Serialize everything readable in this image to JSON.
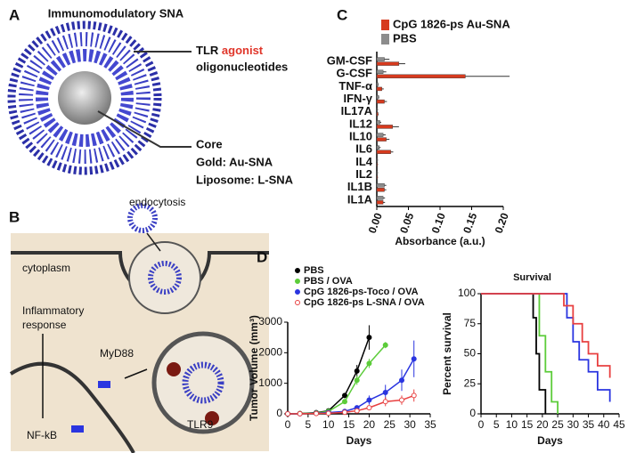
{
  "panel_labels": [
    "A",
    "B",
    "C",
    "D"
  ],
  "diagram_a": {
    "title": "Immunomodulatory SNA",
    "tlr": "TLR",
    "agonist": "agonist",
    "oligo": "oligonucleotides",
    "core": "Core",
    "gold": "Gold: Au-SNA",
    "liposome": "Liposome: L-SNA"
  },
  "diagram_b": {
    "endocytosis": "endocytosis",
    "cytoplasm": "cytoplasm",
    "inflammatory": "Inflammatory",
    "response": "response",
    "myd88": "MyD88",
    "nfkb": "NF-kB",
    "tlr9": "TLR9"
  },
  "chart_data": [
    {
      "type": "bar",
      "orientation": "horizontal",
      "xlabel": "Absorbance (a.u.)",
      "categories": [
        "GM-CSF",
        "G-CSF",
        "TNF-α",
        "IFN-γ",
        "IL17A",
        "IL12",
        "IL10",
        "IL6",
        "IL4",
        "IL2",
        "IL1B",
        "IL1A"
      ],
      "series": [
        {
          "name": "CpG 1826-ps Au-SNA",
          "color": "#d63a1e",
          "values": [
            0.035,
            0.14,
            0.008,
            0.012,
            0.002,
            0.025,
            0.015,
            0.022,
            0.001,
            0.001,
            0.012,
            0.01
          ],
          "errors": [
            0.01,
            0.07,
            0.003,
            0.004,
            0.001,
            0.01,
            0.005,
            0.004,
            0.001,
            0.001,
            0.003,
            0.003
          ]
        },
        {
          "name": "PBS",
          "color": "#8c8c8c",
          "values": [
            0.012,
            0.01,
            0.002,
            0.003,
            0.001,
            0.005,
            0.01,
            0.004,
            0.001,
            0.001,
            0.012,
            0.01
          ],
          "errors": [
            0.008,
            0.005,
            0.001,
            0.001,
            0.001,
            0.002,
            0.004,
            0.002,
            0.001,
            0.001,
            0.003,
            0.003
          ]
        }
      ],
      "xlim": [
        0,
        0.2
      ],
      "xticks": [
        {
          "value": 0,
          "label": "0.00"
        },
        {
          "value": 0.05,
          "label": "0.05"
        },
        {
          "value": 0.1,
          "label": "0.10"
        },
        {
          "value": 0.15,
          "label": "0.15"
        },
        {
          "value": 0.2,
          "label": "0.20"
        }
      ]
    },
    {
      "type": "line",
      "xlabel": "Days",
      "ylabel": "Tumor Volume (mm³)",
      "series": [
        {
          "name": "PBS",
          "color": "#000000",
          "x": [
            0,
            3,
            7,
            10,
            14,
            17,
            20
          ],
          "values": [
            0,
            10,
            40,
            100,
            600,
            1400,
            2500
          ],
          "errors": [
            0,
            5,
            10,
            30,
            80,
            200,
            400
          ]
        },
        {
          "name": "PBS / OVA",
          "color": "#5ccc3a",
          "x": [
            0,
            3,
            7,
            10,
            14,
            17,
            20,
            24
          ],
          "values": [
            0,
            10,
            30,
            80,
            400,
            1100,
            1650,
            2250
          ],
          "errors": [
            0,
            5,
            10,
            20,
            60,
            150,
            150,
            100
          ]
        },
        {
          "name": "CpG 1826-ps-Toco / OVA",
          "color": "#2a35e0",
          "x": [
            0,
            3,
            7,
            10,
            14,
            17,
            20,
            24,
            28,
            31
          ],
          "values": [
            0,
            5,
            20,
            40,
            80,
            200,
            450,
            700,
            1100,
            1800
          ],
          "errors": [
            0,
            3,
            5,
            10,
            20,
            50,
            150,
            250,
            350,
            600
          ]
        },
        {
          "name": "CpG 1826-ps L-SNA / OVA",
          "color": "#e84040",
          "x": [
            0,
            3,
            7,
            10,
            14,
            17,
            20,
            24,
            28,
            31
          ],
          "values": [
            0,
            5,
            10,
            20,
            50,
            100,
            200,
            400,
            450,
            600
          ],
          "errors": [
            0,
            3,
            5,
            5,
            10,
            30,
            60,
            150,
            150,
            200
          ]
        }
      ],
      "xlim": [
        0,
        35
      ],
      "xticks": [
        0,
        5,
        10,
        15,
        20,
        25,
        30,
        35
      ],
      "ylim": [
        0,
        3000
      ],
      "yticks": [
        0,
        1000,
        2000,
        3000
      ]
    },
    {
      "type": "step",
      "title": "Survival",
      "xlabel": "Days",
      "ylabel": "Percent survival",
      "series": [
        {
          "name": "PBS",
          "color": "#000000",
          "x": [
            0,
            17,
            18,
            19,
            21
          ],
          "values": [
            100,
            80,
            50,
            20,
            0
          ]
        },
        {
          "name": "PBS / OVA",
          "color": "#5ccc3a",
          "x": [
            0,
            19,
            21,
            23,
            25
          ],
          "values": [
            100,
            65,
            35,
            10,
            0
          ]
        },
        {
          "name": "CpG 1826-ps-Toco / OVA",
          "color": "#2a35e0",
          "x": [
            0,
            25,
            28,
            30,
            32,
            35,
            38,
            42
          ],
          "values": [
            100,
            100,
            80,
            60,
            45,
            35,
            20,
            10
          ]
        },
        {
          "name": "CpG 1826-ps L-SNA / OVA",
          "color": "#e84040",
          "x": [
            0,
            27,
            30,
            33,
            35,
            38,
            42
          ],
          "values": [
            100,
            90,
            75,
            60,
            50,
            40,
            30
          ]
        }
      ],
      "xlim": [
        0,
        45
      ],
      "xticks": [
        0,
        5,
        10,
        15,
        20,
        25,
        30,
        35,
        40,
        45
      ],
      "ylim": [
        0,
        100
      ],
      "yticks": [
        0,
        25,
        50,
        75,
        100
      ]
    }
  ]
}
